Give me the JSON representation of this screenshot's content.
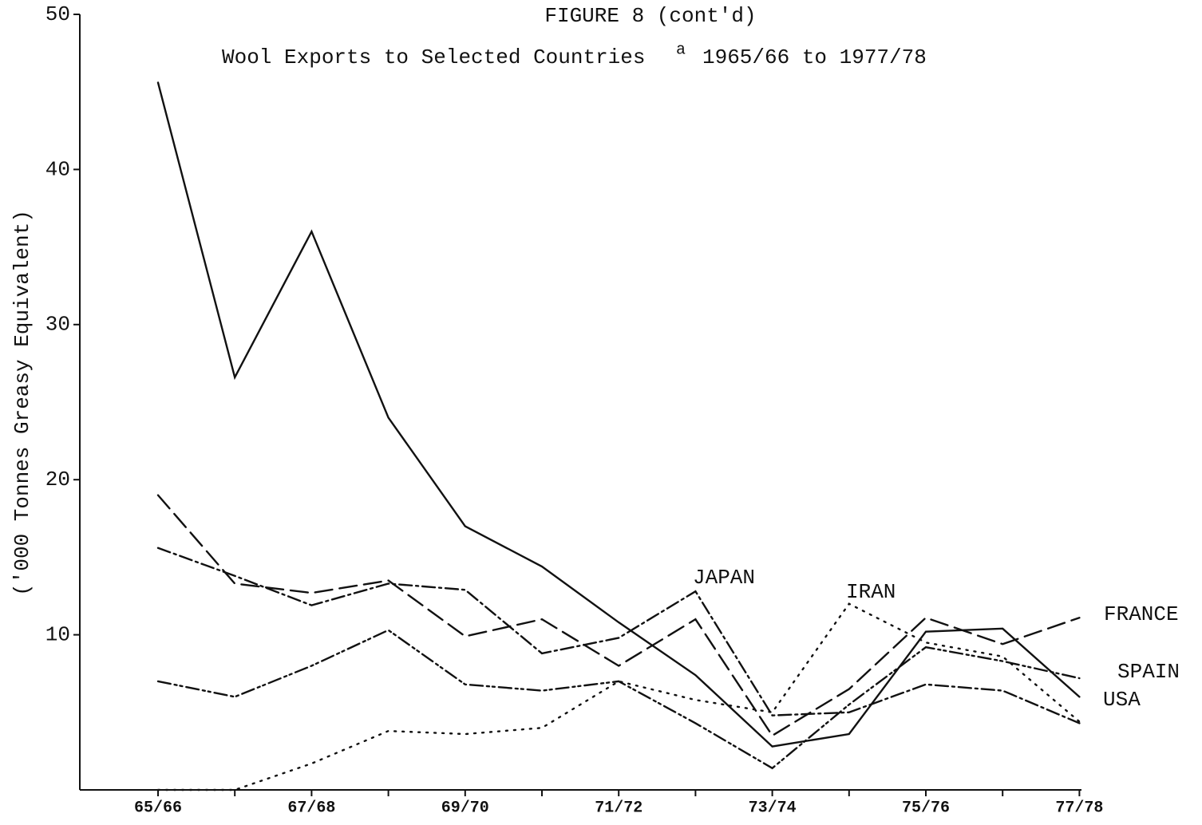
{
  "chart_data": {
    "type": "line",
    "title": "FIGURE 8 (cont'd)",
    "subtitle": "Wool Exports to Selected Countries",
    "subtitle_note": "a",
    "subtitle_period": "1965/66 to 1977/78",
    "y_label": "('000 Tonnes Greasy Equivalent)",
    "categories": [
      "65/66",
      null,
      "67/68",
      null,
      "69/70",
      null,
      "71/72",
      null,
      "73/74",
      null,
      "75/76",
      null,
      "77/78"
    ],
    "ylim": [
      0,
      50
    ],
    "yticks": [
      10,
      20,
      30,
      40,
      50
    ],
    "series": [
      {
        "name": "USA",
        "color": "#111111",
        "dash": "none",
        "values": [
          45.6,
          26.6,
          36,
          24,
          17,
          14.4,
          10.8,
          7.4,
          2.8,
          3.6,
          10.2,
          10.4,
          6
        ]
      },
      {
        "name": "FRANCE",
        "color": "#111111",
        "dash": "22,9",
        "values": [
          19,
          13.3,
          12.7,
          13.5,
          9.9,
          11,
          8,
          11,
          3.5,
          6.5,
          11.1,
          9.4,
          11.1
        ]
      },
      {
        "name": "JAPAN",
        "color": "#111111",
        "dash": "16,5,3,5",
        "values": [
          15.6,
          13.8,
          11.9,
          13.3,
          12.9,
          8.8,
          9.8,
          12.8,
          4.8,
          5,
          6.8,
          6.4,
          4.3
        ]
      },
      {
        "name": "SPAIN",
        "color": "#111111",
        "dash": "16,5,3,4,3,5",
        "values": [
          7,
          6,
          8,
          10.3,
          6.8,
          6.4,
          7,
          4.3,
          1.4,
          5.5,
          9.2,
          8.3,
          7.2
        ]
      },
      {
        "name": "IRAN",
        "color": "#111111",
        "dash": "2,8",
        "values": [
          0,
          0,
          1.7,
          3.8,
          3.6,
          4,
          7,
          5.8,
          5,
          12,
          9.5,
          8.6,
          4.4
        ]
      }
    ]
  }
}
